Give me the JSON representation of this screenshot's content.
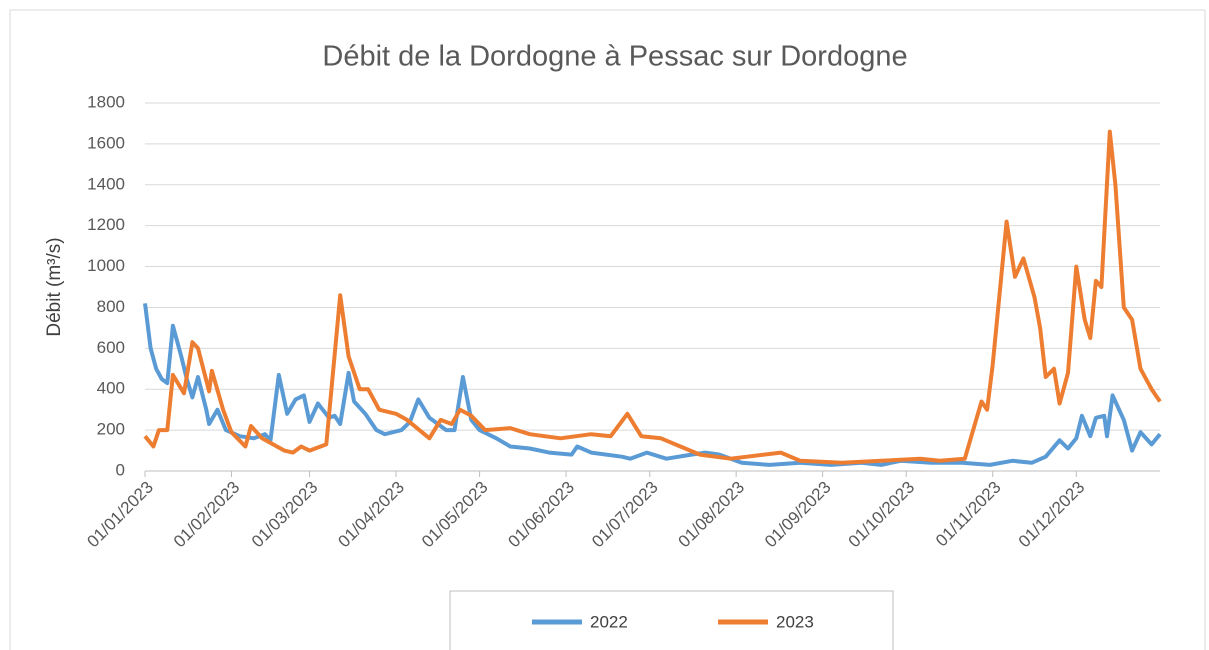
{
  "chart_data": {
    "type": "line",
    "title": "Débit de la Dordogne à Pessac sur Dordogne",
    "y_label": "Débit (m³/s)",
    "ylim": [
      0,
      1800
    ],
    "yticks": [
      0,
      200,
      400,
      600,
      800,
      1000,
      1200,
      1400,
      1600,
      1800
    ],
    "xlim": [
      "01/01/2023",
      "31/12/2023"
    ],
    "xticks": [
      "01/01/2023",
      "01/02/2023",
      "01/03/2023",
      "01/04/2023",
      "01/05/2023",
      "01/06/2023",
      "01/07/2023",
      "01/08/2023",
      "01/09/2023",
      "01/10/2023",
      "01/11/2023",
      "01/12/2023"
    ],
    "grid": true,
    "legend": "bottom",
    "series": [
      {
        "name": "2022",
        "color": "#5b9bd5",
        "x": [
          "01/01/2023",
          "03/01/2023",
          "05/01/2023",
          "07/01/2023",
          "09/01/2023",
          "11/01/2023",
          "14/01/2023",
          "16/01/2023",
          "18/01/2023",
          "20/01/2023",
          "23/01/2023",
          "24/01/2023",
          "27/01/2023",
          "30/01/2023",
          "04/02/2023",
          "09/02/2023",
          "13/02/2023",
          "15/02/2023",
          "18/02/2023",
          "21/02/2023",
          "24/02/2023",
          "27/02/2023",
          "01/03/2023",
          "04/03/2023",
          "08/03/2023",
          "10/03/2023",
          "12/03/2023",
          "15/03/2023",
          "17/03/2023",
          "21/03/2023",
          "25/03/2023",
          "28/03/2023",
          "03/04/2023",
          "06/04/2023",
          "09/04/2023",
          "13/04/2023",
          "19/04/2023",
          "22/04/2023",
          "25/04/2023",
          "28/04/2023",
          "01/05/2023",
          "07/05/2023",
          "12/05/2023",
          "19/05/2023",
          "26/05/2023",
          "03/06/2023",
          "05/06/2023",
          "10/06/2023",
          "21/06/2023",
          "24/06/2023",
          "30/06/2023",
          "07/07/2023",
          "16/07/2023",
          "21/07/2023",
          "26/07/2023",
          "03/08/2023",
          "13/08/2023",
          "24/08/2023",
          "04/09/2023",
          "15/09/2023",
          "22/09/2023",
          "29/09/2023",
          "10/10/2023",
          "21/10/2023",
          "31/10/2023",
          "08/11/2023",
          "15/11/2023",
          "20/11/2023",
          "25/11/2023",
          "28/11/2023",
          "01/12/2023",
          "03/12/2023",
          "06/12/2023",
          "08/12/2023",
          "11/12/2023",
          "12/12/2023",
          "14/12/2023",
          "18/12/2023",
          "21/12/2023",
          "24/12/2023",
          "28/12/2023",
          "31/12/2023"
        ],
        "values": [
          820,
          600,
          500,
          450,
          430,
          710,
          560,
          450,
          360,
          460,
          300,
          230,
          300,
          200,
          170,
          160,
          180,
          150,
          470,
          280,
          350,
          370,
          240,
          330,
          260,
          270,
          230,
          480,
          340,
          280,
          200,
          180,
          200,
          240,
          350,
          260,
          200,
          200,
          460,
          250,
          200,
          160,
          120,
          110,
          90,
          80,
          120,
          90,
          70,
          60,
          90,
          60,
          80,
          90,
          80,
          40,
          30,
          40,
          30,
          40,
          30,
          50,
          40,
          40,
          30,
          50,
          40,
          70,
          150,
          110,
          160,
          270,
          170,
          260,
          270,
          170,
          370,
          250,
          100,
          190,
          130,
          180
        ]
      },
      {
        "name": "2023",
        "color": "#ed7d31",
        "x": [
          "01/01/2023",
          "04/01/2023",
          "06/01/2023",
          "09/01/2023",
          "11/01/2023",
          "15/01/2023",
          "18/01/2023",
          "20/01/2023",
          "24/01/2023",
          "25/01/2023",
          "29/01/2023",
          "01/02/2023",
          "06/02/2023",
          "08/02/2023",
          "12/02/2023",
          "20/02/2023",
          "23/02/2023",
          "26/02/2023",
          "01/03/2023",
          "07/03/2023",
          "12/03/2023",
          "15/03/2023",
          "19/03/2023",
          "22/03/2023",
          "26/03/2023",
          "01/04/2023",
          "05/04/2023",
          "13/04/2023",
          "17/04/2023",
          "21/04/2023",
          "24/04/2023",
          "28/04/2023",
          "03/05/2023",
          "12/05/2023",
          "19/05/2023",
          "30/05/2023",
          "10/06/2023",
          "17/06/2023",
          "23/06/2023",
          "28/06/2023",
          "05/07/2023",
          "12/07/2023",
          "19/07/2023",
          "30/07/2023",
          "17/08/2023",
          "24/08/2023",
          "08/09/2023",
          "22/09/2023",
          "06/10/2023",
          "13/10/2023",
          "22/10/2023",
          "28/10/2023",
          "30/10/2023",
          "01/11/2023",
          "06/11/2023",
          "09/11/2023",
          "12/11/2023",
          "16/11/2023",
          "18/11/2023",
          "20/11/2023",
          "23/11/2023",
          "25/11/2023",
          "28/11/2023",
          "01/12/2023",
          "04/12/2023",
          "06/12/2023",
          "08/12/2023",
          "10/12/2023",
          "13/12/2023",
          "15/12/2023",
          "18/12/2023",
          "21/12/2023",
          "24/12/2023",
          "28/12/2023",
          "31/12/2023"
        ],
        "values": [
          170,
          120,
          200,
          200,
          470,
          380,
          630,
          600,
          390,
          490,
          300,
          190,
          120,
          220,
          160,
          100,
          90,
          120,
          100,
          130,
          860,
          560,
          400,
          400,
          300,
          280,
          250,
          160,
          250,
          230,
          300,
          270,
          200,
          210,
          180,
          160,
          180,
          170,
          280,
          170,
          160,
          120,
          80,
          60,
          90,
          50,
          40,
          50,
          60,
          50,
          60,
          340,
          300,
          520,
          1220,
          950,
          1040,
          850,
          700,
          460,
          500,
          330,
          480,
          1000,
          740,
          650,
          930,
          900,
          1660,
          1400,
          800,
          740,
          500,
          400,
          340
        ]
      }
    ]
  }
}
